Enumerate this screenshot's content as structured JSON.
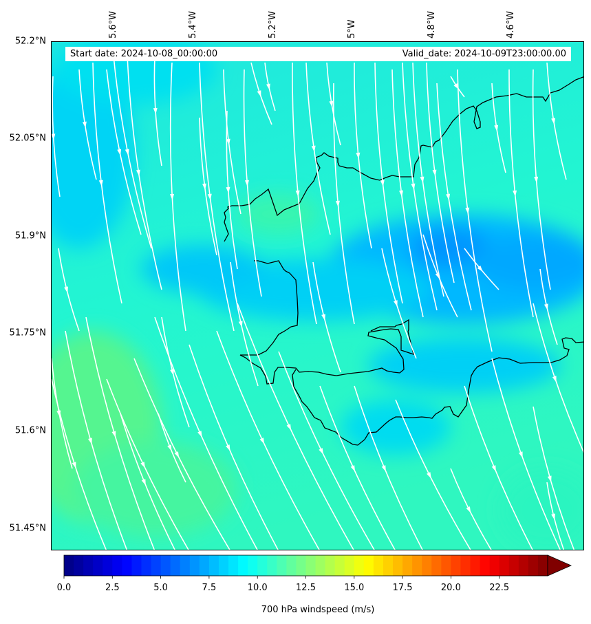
{
  "map": {
    "start_label": "Start date: 2024-10-08_00:00:00",
    "valid_label": "Valid_date: 2024-10-09T23:00:00.00",
    "lat_ticks": [
      "52.2°N",
      "52.05°N",
      "51.9°N",
      "51.75°N",
      "51.6°N",
      "51.45°N"
    ],
    "lon_ticks": [
      "5.6°W",
      "5.4°W",
      "5.2°W",
      "5°W",
      "4.8°W",
      "4.6°W"
    ],
    "field": "700 hPa windspeed",
    "streamline_color": "#ffffff",
    "coastline_color": "#000000"
  },
  "colorbar": {
    "label": "700 hPa windspeed (m/s)",
    "ticks": [
      "0.0",
      "2.5",
      "5.0",
      "7.5",
      "10.0",
      "12.5",
      "15.0",
      "17.5",
      "20.0",
      "22.5"
    ],
    "min": 0,
    "max": 25,
    "extend": "max",
    "colormap": "jet"
  }
}
